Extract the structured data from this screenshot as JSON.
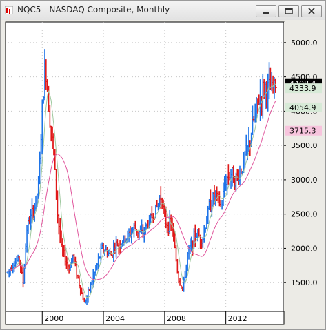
{
  "window": {
    "title": "NQC5 - NASDAQ Composite, Monthly"
  },
  "colors": {
    "up_bar": "#1e74e8",
    "down_bar": "#e01818",
    "ma_fast": "#9ec89e",
    "ma_slow": "#e0559c",
    "background": "#ffffff",
    "grid": "#c8c8c8",
    "last_price_bg": "#000000"
  },
  "chart_data": {
    "type": "ohlc",
    "title": "NQC5 - NASDAQ Composite, Monthly",
    "xlabel": "",
    "ylabel": "",
    "ylim": [
      1080,
      5300
    ],
    "xlim": [
      1997.6,
      2015.8
    ],
    "x_ticks": [
      {
        "label": "2000",
        "x": 2000
      },
      {
        "label": "2004",
        "x": 2004
      },
      {
        "label": "2008",
        "x": 2008
      },
      {
        "label": "2012",
        "x": 2012
      }
    ],
    "y_ticks": [
      {
        "label": "5000.0",
        "y": 5000
      },
      {
        "label": "4500.0",
        "y": 4500
      },
      {
        "label": "4000.0",
        "y": 4000
      },
      {
        "label": "3500.0",
        "y": 3500
      },
      {
        "label": "3000.0",
        "y": 3000
      },
      {
        "label": "2500.0",
        "y": 2500
      },
      {
        "label": "2000.0",
        "y": 2000
      },
      {
        "label": "1500.0",
        "y": 1500
      }
    ],
    "price_labels": [
      {
        "label": "4408.4",
        "y": 4408,
        "style": "last"
      },
      {
        "label": "4333.9",
        "y": 4334,
        "style": "ma_fast"
      },
      {
        "label": "4054.9",
        "y": 4055,
        "style": "ma_mid"
      },
      {
        "label": "3715.3",
        "y": 3715,
        "style": "ma_slow"
      }
    ],
    "grid": true,
    "series": [
      {
        "name": "Close",
        "x": [
          1997.75,
          1998.0,
          1998.5,
          1998.75,
          1999.0,
          1999.5,
          1999.75,
          2000.0,
          2000.2,
          2000.5,
          2000.75,
          2001.0,
          2001.25,
          2001.75,
          2002.0,
          2002.5,
          2002.75,
          2003.0,
          2003.5,
          2003.9,
          2004.5,
          2004.75,
          2005.0,
          2005.5,
          2006.0,
          2006.5,
          2007.0,
          2007.5,
          2007.8,
          2008.0,
          2008.5,
          2008.9,
          2009.2,
          2009.5,
          2010.0,
          2010.5,
          2010.9,
          2011.3,
          2011.7,
          2012.0,
          2012.3,
          2012.7,
          2013.0,
          2013.5,
          2014.0,
          2014.5,
          2015.0,
          2015.3
        ],
        "values": [
          1650,
          1750,
          1850,
          1500,
          2300,
          2600,
          2900,
          4000,
          4700,
          3900,
          3400,
          2500,
          2000,
          1700,
          1900,
          1400,
          1200,
          1350,
          1700,
          2000,
          1900,
          2050,
          2050,
          2150,
          2300,
          2200,
          2400,
          2600,
          2800,
          2400,
          2300,
          1550,
          1400,
          1900,
          2200,
          2150,
          2600,
          2800,
          2600,
          3000,
          3100,
          3000,
          3150,
          3500,
          4050,
          4350,
          4300,
          4408
        ]
      },
      {
        "name": "MA fast",
        "values_note": "smoothed moving average of close"
      },
      {
        "name": "MA slow",
        "values_note": "long moving average of close"
      }
    ]
  }
}
